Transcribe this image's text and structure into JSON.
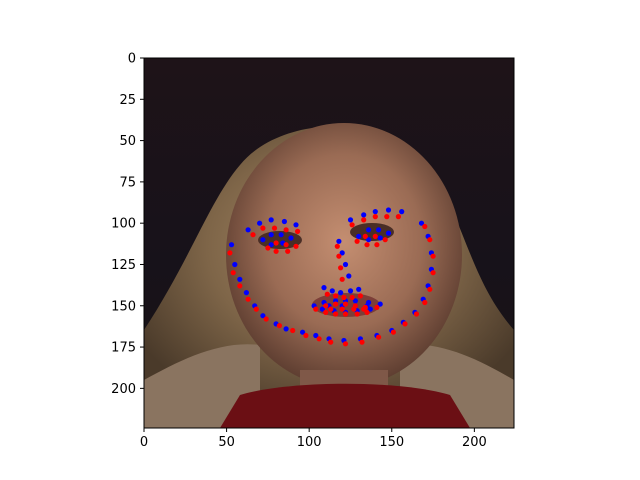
{
  "chart_data": {
    "type": "scatter",
    "title": "",
    "xlabel": "",
    "ylabel": "",
    "xlim": [
      0,
      224
    ],
    "ylim": [
      224,
      0
    ],
    "y_inverted": true,
    "grid": false,
    "background": "image",
    "x_ticks": [
      0,
      50,
      100,
      150,
      200
    ],
    "y_ticks": [
      0,
      25,
      50,
      75,
      100,
      125,
      150,
      175,
      200
    ],
    "series": [
      {
        "color": "#0000ff",
        "points": [
          [
            53,
            113
          ],
          [
            55,
            125
          ],
          [
            58,
            134
          ],
          [
            62,
            142
          ],
          [
            67,
            150
          ],
          [
            72,
            156
          ],
          [
            80,
            161
          ],
          [
            86,
            164
          ],
          [
            96,
            166
          ],
          [
            104,
            168
          ],
          [
            112,
            170
          ],
          [
            121,
            171
          ],
          [
            131,
            170
          ],
          [
            141,
            168
          ],
          [
            150,
            165
          ],
          [
            157,
            160
          ],
          [
            164,
            154
          ],
          [
            169,
            146
          ],
          [
            172,
            138
          ],
          [
            174,
            128
          ],
          [
            174,
            118
          ],
          [
            172,
            108
          ],
          [
            168,
            100
          ],
          [
            63,
            104
          ],
          [
            70,
            100
          ],
          [
            77,
            98
          ],
          [
            85,
            99
          ],
          [
            92,
            101
          ],
          [
            125,
            98
          ],
          [
            133,
            95
          ],
          [
            140,
            93
          ],
          [
            148,
            92
          ],
          [
            156,
            93
          ],
          [
            118,
            111
          ],
          [
            120,
            118
          ],
          [
            122,
            125
          ],
          [
            124,
            132
          ],
          [
            109,
            139
          ],
          [
            114,
            141
          ],
          [
            119,
            142
          ],
          [
            125,
            141
          ],
          [
            130,
            140
          ],
          [
            72,
            110
          ],
          [
            77,
            107
          ],
          [
            83,
            107
          ],
          [
            89,
            109
          ],
          [
            84,
            112
          ],
          [
            77,
            113
          ],
          [
            130,
            108
          ],
          [
            136,
            104
          ],
          [
            142,
            104
          ],
          [
            148,
            106
          ],
          [
            143,
            109
          ],
          [
            136,
            110
          ],
          [
            103,
            150
          ],
          [
            109,
            148
          ],
          [
            116,
            147
          ],
          [
            122,
            147
          ],
          [
            128,
            147
          ],
          [
            136,
            148
          ],
          [
            143,
            149
          ],
          [
            137,
            152
          ],
          [
            129,
            153
          ],
          [
            122,
            154
          ],
          [
            115,
            153
          ],
          [
            108,
            152
          ],
          [
            112,
            150
          ],
          [
            120,
            150
          ],
          [
            128,
            150
          ],
          [
            135,
            150
          ]
        ]
      },
      {
        "color": "#ff0000",
        "points": [
          [
            52,
            118
          ],
          [
            54,
            130
          ],
          [
            58,
            138
          ],
          [
            63,
            146
          ],
          [
            68,
            152
          ],
          [
            74,
            158
          ],
          [
            82,
            162
          ],
          [
            90,
            165
          ],
          [
            98,
            168
          ],
          [
            106,
            170
          ],
          [
            113,
            172
          ],
          [
            122,
            173
          ],
          [
            132,
            172
          ],
          [
            142,
            169
          ],
          [
            151,
            166
          ],
          [
            158,
            161
          ],
          [
            165,
            155
          ],
          [
            170,
            148
          ],
          [
            173,
            140
          ],
          [
            175,
            130
          ],
          [
            175,
            120
          ],
          [
            173,
            110
          ],
          [
            170,
            102
          ],
          [
            66,
            107
          ],
          [
            72,
            103
          ],
          [
            79,
            103
          ],
          [
            86,
            104
          ],
          [
            93,
            105
          ],
          [
            126,
            101
          ],
          [
            133,
            98
          ],
          [
            140,
            96
          ],
          [
            147,
            96
          ],
          [
            154,
            96
          ],
          [
            117,
            114
          ],
          [
            118,
            120
          ],
          [
            119,
            127
          ],
          [
            120,
            134
          ],
          [
            111,
            143
          ],
          [
            116,
            144
          ],
          [
            121,
            145
          ],
          [
            126,
            145
          ],
          [
            131,
            144
          ],
          [
            75,
            115
          ],
          [
            80,
            112
          ],
          [
            86,
            113
          ],
          [
            92,
            114
          ],
          [
            87,
            117
          ],
          [
            80,
            117
          ],
          [
            129,
            111
          ],
          [
            134,
            108
          ],
          [
            140,
            108
          ],
          [
            146,
            110
          ],
          [
            141,
            113
          ],
          [
            135,
            113
          ],
          [
            104,
            152
          ],
          [
            110,
            150
          ],
          [
            116,
            149
          ],
          [
            122,
            149
          ],
          [
            128,
            150
          ],
          [
            134,
            151
          ],
          [
            141,
            151
          ],
          [
            135,
            154
          ],
          [
            129,
            155
          ],
          [
            122,
            155
          ],
          [
            116,
            155
          ],
          [
            110,
            154
          ],
          [
            113,
            152
          ],
          [
            120,
            152
          ],
          [
            127,
            152
          ],
          [
            133,
            152
          ]
        ]
      }
    ]
  }
}
